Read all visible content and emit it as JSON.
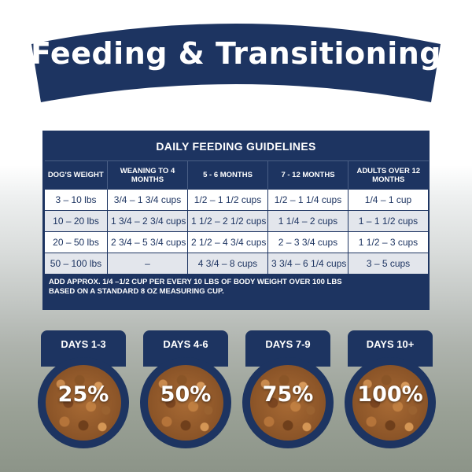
{
  "banner": {
    "title": "Feeding & Transitioning"
  },
  "table": {
    "title": "DAILY FEEDING GUIDELINES",
    "headers": [
      "DOG'S WEIGHT",
      "WEANING TO 4 MONTHS",
      "5 - 6 MONTHS",
      "7 - 12 MONTHS",
      "ADULTS OVER 12 MONTHS"
    ],
    "rows": [
      [
        "3 – 10 lbs",
        "3/4 – 1 3/4 cups",
        "1/2 – 1 1/2 cups",
        "1/2 – 1 1/4 cups",
        "1/4 – 1 cup"
      ],
      [
        "10 – 20 lbs",
        "1 3/4 – 2 3/4 cups",
        "1 1/2 – 2 1/2 cups",
        "1 1/4 – 2 cups",
        "1 – 1 1/2 cups"
      ],
      [
        "20 – 50 lbs",
        "2 3/4 – 5 3/4 cups",
        "2 1/2 – 4 3/4 cups",
        "2 – 3 3/4 cups",
        "1 1/2 – 3 cups"
      ],
      [
        "50 – 100 lbs",
        "–",
        "4 3/4 – 8 cups",
        "3 3/4 – 6 1/4 cups",
        "3 – 5 cups"
      ]
    ],
    "note_line1": "ADD APPROX. 1/4 –1/2 CUP PER EVERY 10 LBS OF BODY WEIGHT OVER 100 LBS",
    "note_line2": "BASED ON A STANDARD 8 OZ MEASURING CUP."
  },
  "days": [
    {
      "label": "DAYS 1-3",
      "percent": "25%"
    },
    {
      "label": "DAYS 4-6",
      "percent": "50%"
    },
    {
      "label": "DAYS 7-9",
      "percent": "75%"
    },
    {
      "label": "DAYS 10+",
      "percent": "100%"
    }
  ],
  "colors": {
    "navy": "#1d3461",
    "row_alt": "#e3e6ec",
    "white": "#ffffff"
  }
}
